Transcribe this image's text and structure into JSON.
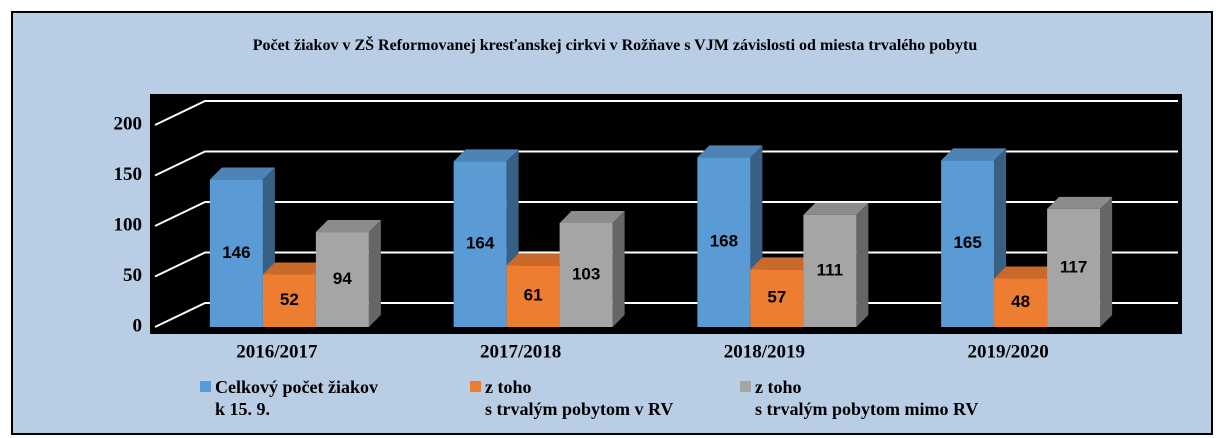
{
  "chart_data": {
    "type": "bar3d",
    "title": "Počet  žiakov v ZŠ Reformovanej kresťanskej cirkvi v Rožňave s VJM závislosti od miesta trvalého pobytu",
    "categories": [
      "2016/2017",
      "2017/2018",
      "2018/2019",
      "2019/2020"
    ],
    "series": [
      {
        "name": "Celkový počet žiakov\nk 15. 9.",
        "color": "#5b9bd5",
        "values": [
          146,
          164,
          168,
          165
        ]
      },
      {
        "name": "z toho\ns trvalým pobytom v RV",
        "color": "#ed7d31",
        "values": [
          52,
          61,
          57,
          48
        ]
      },
      {
        "name": "z toho\ns trvalým pobytom  mimo RV",
        "color": "#a5a5a5",
        "values": [
          94,
          103,
          111,
          117
        ]
      }
    ],
    "ylim": [
      0,
      200
    ],
    "yticks": [
      0,
      50,
      100,
      150,
      200
    ],
    "grid": true
  }
}
